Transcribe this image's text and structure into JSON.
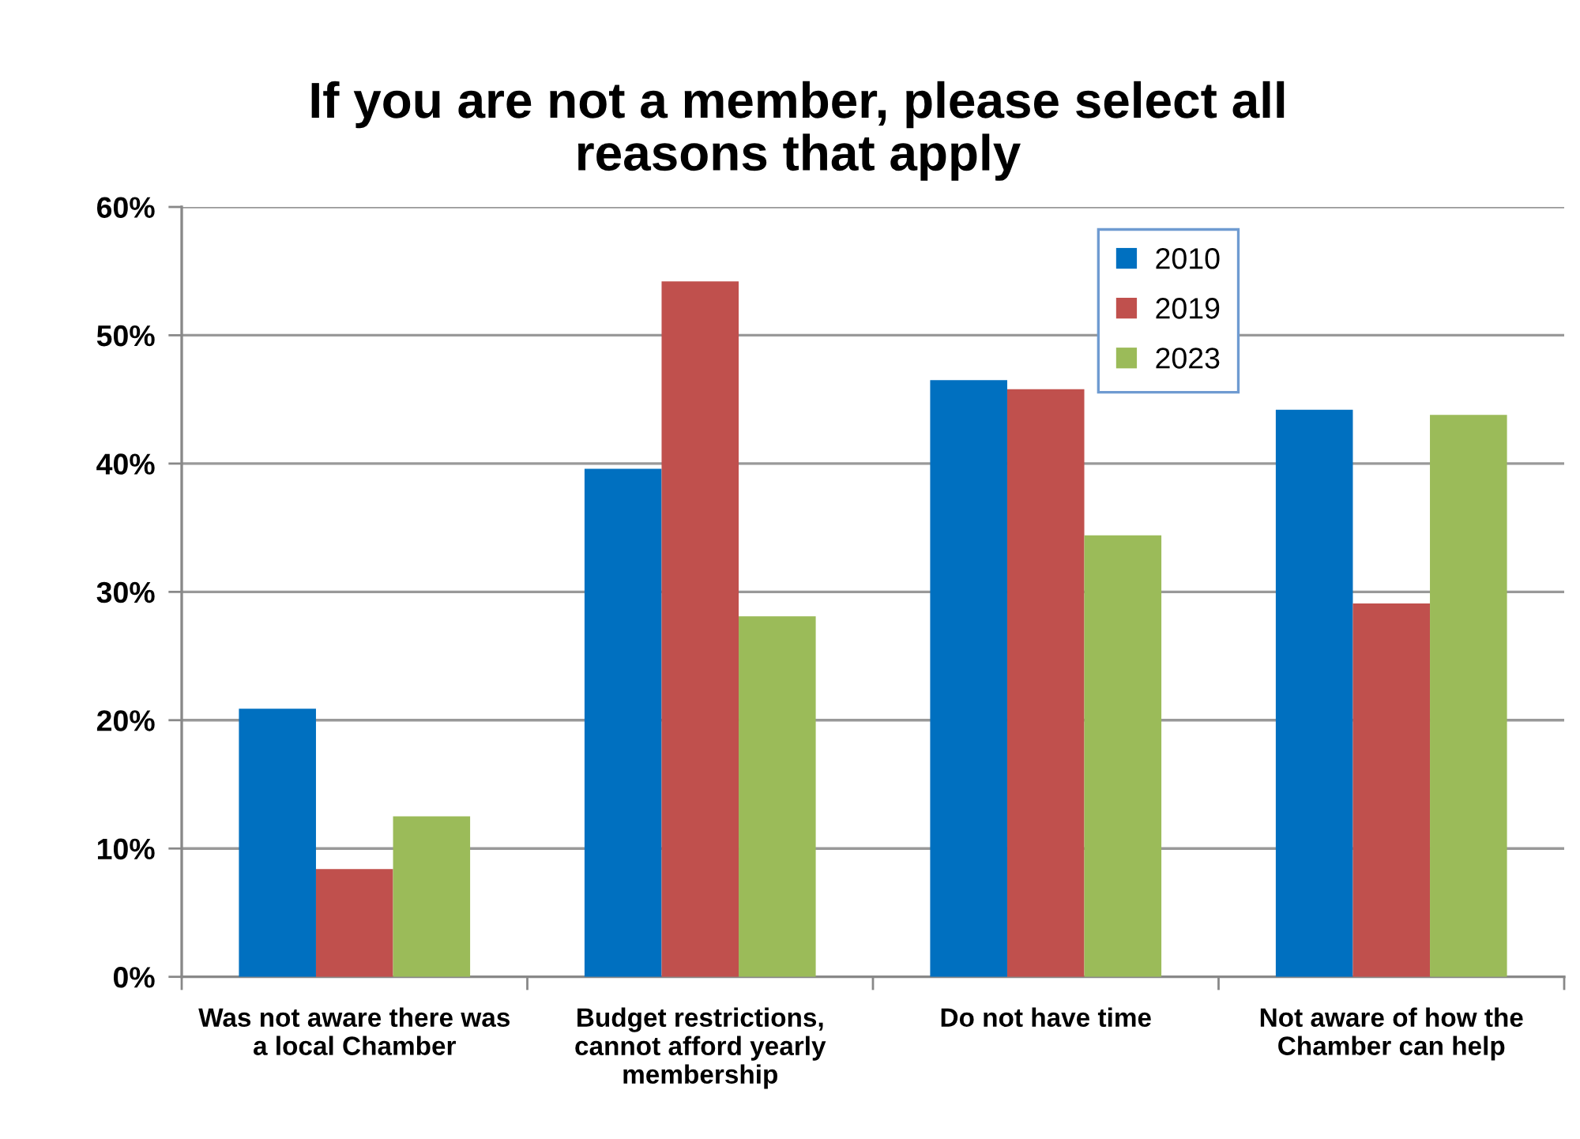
{
  "chart_data": {
    "type": "bar",
    "title": "If you are not a member, please select all\nreasons that apply",
    "categories": [
      "Was not aware there was\na local Chamber",
      "Budget restrictions,\ncannot afford yearly\nmembership",
      "Do not have time",
      "Not aware of how the\nChamber can help"
    ],
    "series": [
      {
        "name": "2010",
        "color": "#0070c0",
        "values": [
          20.9,
          39.6,
          46.5,
          44.2
        ]
      },
      {
        "name": "2019",
        "color": "#c0504d",
        "values": [
          8.4,
          54.2,
          45.8,
          29.1
        ]
      },
      {
        "name": "2023",
        "color": "#9bbb59",
        "values": [
          12.5,
          28.1,
          34.4,
          43.8
        ]
      }
    ],
    "ylim": [
      0,
      60
    ],
    "yticks": [
      {
        "value": 0,
        "label": "0%"
      },
      {
        "value": 10,
        "label": "10%"
      },
      {
        "value": 20,
        "label": "20%"
      },
      {
        "value": 30,
        "label": "30%"
      },
      {
        "value": 40,
        "label": "40%"
      },
      {
        "value": 50,
        "label": "50%"
      },
      {
        "value": 60,
        "label": "60%"
      }
    ],
    "grid": "y",
    "legend": "top right"
  }
}
